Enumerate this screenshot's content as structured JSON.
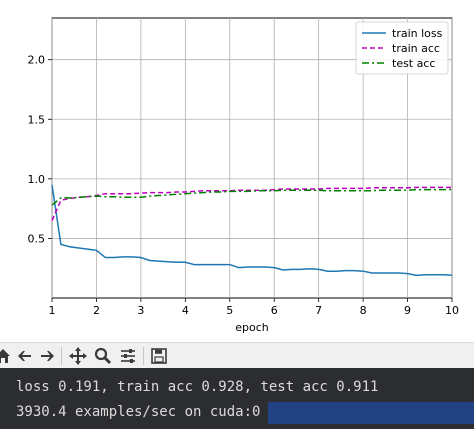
{
  "chart_data": {
    "type": "line",
    "xlabel": "epoch",
    "ylabel": "",
    "xlim": [
      1,
      10
    ],
    "ylim": [
      0.0,
      2.35
    ],
    "x_ticks": [
      "1",
      "2",
      "3",
      "4",
      "5",
      "6",
      "7",
      "8",
      "9",
      "10"
    ],
    "y_ticks": [
      "0.5",
      "1.0",
      "1.5",
      "2.0"
    ],
    "grid": true,
    "legend_position": "top-right",
    "series": [
      {
        "name": "train loss",
        "color": "#1f77b4",
        "style": "solid",
        "x": [
          1.0,
          1.2,
          1.4,
          1.6,
          1.8,
          2.0,
          2.2,
          2.4,
          2.6,
          2.8,
          3.0,
          3.2,
          3.4,
          3.6,
          3.8,
          4.0,
          4.2,
          4.4,
          4.6,
          4.8,
          5.0,
          5.2,
          5.4,
          5.6,
          5.8,
          6.0,
          6.2,
          6.4,
          6.6,
          6.8,
          7.0,
          7.2,
          7.4,
          7.6,
          7.8,
          8.0,
          8.2,
          8.4,
          8.6,
          8.8,
          9.0,
          9.2,
          9.4,
          9.6,
          9.8,
          10.0
        ],
        "y": [
          0.95,
          0.45,
          0.43,
          0.42,
          0.41,
          0.4,
          0.34,
          0.34,
          0.345,
          0.345,
          0.34,
          0.315,
          0.31,
          0.305,
          0.3,
          0.3,
          0.28,
          0.28,
          0.28,
          0.28,
          0.28,
          0.255,
          0.26,
          0.26,
          0.26,
          0.255,
          0.235,
          0.24,
          0.24,
          0.245,
          0.24,
          0.225,
          0.225,
          0.23,
          0.23,
          0.225,
          0.21,
          0.21,
          0.21,
          0.21,
          0.205,
          0.19,
          0.195,
          0.195,
          0.195,
          0.191
        ]
      },
      {
        "name": "train acc",
        "color": "#bf00bf",
        "style": "dashed",
        "x": [
          1.0,
          1.2,
          1.4,
          1.6,
          1.8,
          2.0,
          2.2,
          2.4,
          2.6,
          2.8,
          3.0,
          3.2,
          3.4,
          3.6,
          3.8,
          4.0,
          4.2,
          4.4,
          4.6,
          4.8,
          5.0,
          5.2,
          5.4,
          5.6,
          5.8,
          6.0,
          6.2,
          6.4,
          6.6,
          6.8,
          7.0,
          7.2,
          7.4,
          7.6,
          7.8,
          8.0,
          8.2,
          8.4,
          8.6,
          8.8,
          9.0,
          9.2,
          9.4,
          9.6,
          9.8,
          10.0
        ],
        "y": [
          0.65,
          0.82,
          0.835,
          0.845,
          0.85,
          0.86,
          0.875,
          0.875,
          0.875,
          0.875,
          0.88,
          0.885,
          0.885,
          0.885,
          0.89,
          0.89,
          0.895,
          0.9,
          0.9,
          0.9,
          0.9,
          0.905,
          0.905,
          0.905,
          0.905,
          0.91,
          0.915,
          0.915,
          0.915,
          0.915,
          0.915,
          0.92,
          0.92,
          0.92,
          0.92,
          0.92,
          0.925,
          0.925,
          0.925,
          0.925,
          0.925,
          0.928,
          0.928,
          0.928,
          0.928,
          0.928
        ]
      },
      {
        "name": "test acc",
        "color": "#008000",
        "style": "dashdot",
        "x": [
          1.0,
          1.2,
          1.4,
          1.6,
          1.8,
          2.0,
          2.2,
          2.4,
          2.6,
          2.8,
          3.0,
          3.2,
          3.4,
          3.6,
          3.8,
          4.0,
          4.2,
          4.4,
          4.6,
          4.8,
          5.0,
          5.2,
          5.4,
          5.6,
          5.8,
          6.0,
          6.2,
          6.4,
          6.6,
          6.8,
          7.0,
          7.2,
          7.4,
          7.6,
          7.8,
          8.0,
          8.2,
          8.4,
          8.6,
          8.8,
          9.0,
          9.2,
          9.4,
          9.6,
          9.8,
          10.0
        ],
        "y": [
          0.78,
          0.84,
          0.84,
          0.845,
          0.85,
          0.855,
          0.85,
          0.85,
          0.845,
          0.845,
          0.845,
          0.855,
          0.86,
          0.865,
          0.87,
          0.875,
          0.88,
          0.885,
          0.89,
          0.89,
          0.895,
          0.895,
          0.895,
          0.9,
          0.9,
          0.9,
          0.905,
          0.905,
          0.905,
          0.905,
          0.905,
          0.9,
          0.9,
          0.9,
          0.9,
          0.9,
          0.9,
          0.905,
          0.905,
          0.905,
          0.905,
          0.91,
          0.91,
          0.91,
          0.91,
          0.911
        ]
      }
    ]
  },
  "toolbar": {
    "buttons": [
      {
        "name": "home-icon"
      },
      {
        "name": "back-arrow-icon"
      },
      {
        "name": "forward-arrow-icon"
      },
      {
        "name": "pan-icon"
      },
      {
        "name": "zoom-icon"
      },
      {
        "name": "configure-subplots-icon"
      },
      {
        "name": "save-icon"
      }
    ]
  },
  "console": {
    "line1": "loss 0.191, train acc 0.928, test acc 0.911",
    "line2": "3930.4 examples/sec on cuda:0"
  },
  "colors": {
    "console_bg": "#2b2d30",
    "console_text": "#dcdcdc",
    "selection": "#214283"
  }
}
